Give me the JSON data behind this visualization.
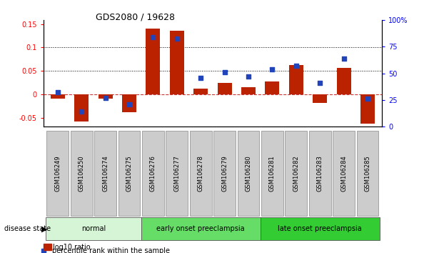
{
  "title": "GDS2080 / 19628",
  "samples": [
    "GSM106249",
    "GSM106250",
    "GSM106274",
    "GSM106275",
    "GSM106276",
    "GSM106277",
    "GSM106278",
    "GSM106279",
    "GSM106280",
    "GSM106281",
    "GSM106282",
    "GSM106283",
    "GSM106284",
    "GSM106285"
  ],
  "log10_ratio": [
    -0.008,
    -0.057,
    -0.008,
    -0.037,
    0.14,
    0.135,
    0.012,
    0.024,
    0.015,
    0.028,
    0.063,
    -0.018,
    0.057,
    -0.062
  ],
  "percentile_rank": [
    32,
    14,
    27,
    21,
    84,
    83,
    46,
    51,
    47,
    54,
    57,
    41,
    64,
    26
  ],
  "groups": [
    {
      "label": "normal",
      "start": 0,
      "end": 4,
      "color": "#d6f5d6"
    },
    {
      "label": "early onset preeclampsia",
      "start": 4,
      "end": 9,
      "color": "#66dd66"
    },
    {
      "label": "late onset preeclampsia",
      "start": 9,
      "end": 14,
      "color": "#33cc33"
    }
  ],
  "bar_color": "#bb2200",
  "dot_color": "#2244bb",
  "ylim_left": [
    -0.068,
    0.158
  ],
  "ylim_right": [
    0,
    100
  ],
  "yticks_left": [
    -0.05,
    0.0,
    0.05,
    0.1,
    0.15
  ],
  "yticks_right": [
    0,
    25,
    50,
    75,
    100
  ],
  "ytick_labels_left": [
    "-0.05",
    "0",
    "0.05",
    "0.1",
    "0.15"
  ],
  "ytick_labels_right": [
    "0",
    "25",
    "50",
    "75",
    "100%"
  ],
  "disease_state_label": "disease state",
  "legend_bar_label": "log10 ratio",
  "legend_dot_label": "percentile rank within the sample",
  "hlines": [
    0.05,
    0.1
  ],
  "zero_line_color": "#cc3333",
  "bg_color": "#ffffff",
  "plot_bg": "#ffffff",
  "tick_box_color": "#cccccc"
}
